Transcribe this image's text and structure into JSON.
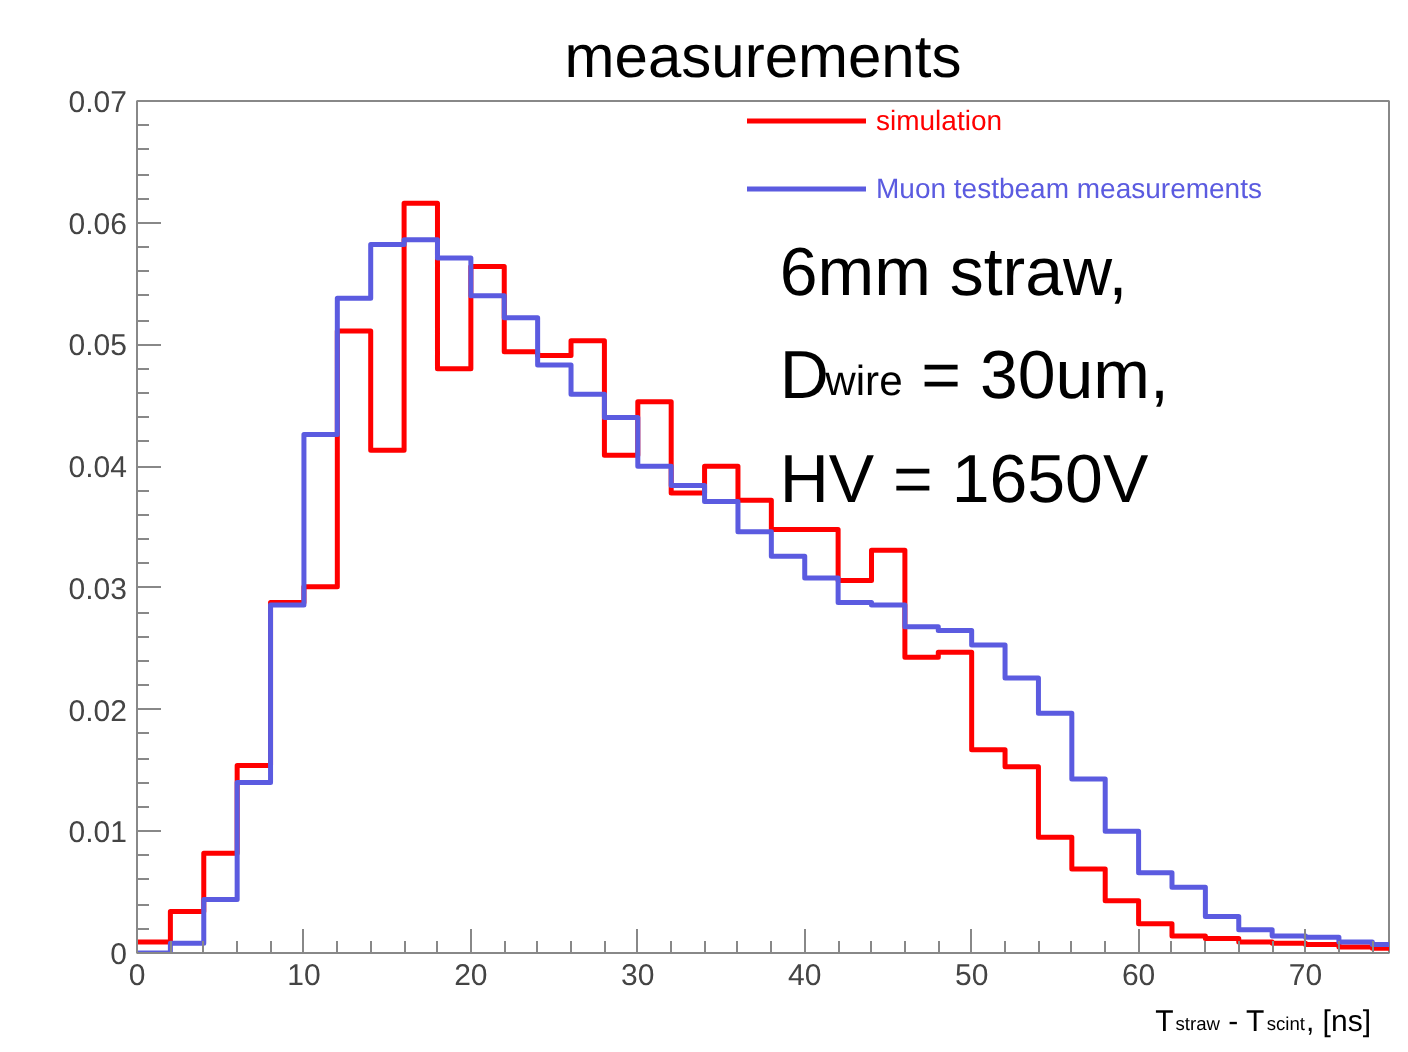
{
  "chart_data": {
    "type": "histogram",
    "title": "measurements",
    "xlabel": "T$_{straw}$ - T$_{scint}$, [ns]",
    "bins": [
      0,
      2,
      4,
      6,
      8,
      10,
      12,
      14,
      16,
      18,
      20,
      22,
      24,
      26,
      28,
      30,
      32,
      34,
      36,
      38,
      40,
      42,
      44,
      46,
      48,
      50,
      52,
      54,
      56,
      58,
      60,
      62,
      64,
      66,
      68,
      70,
      72,
      74,
      75
    ],
    "series": [
      {
        "name": "simulation",
        "color": "#ff0000",
        "values": [
          0.0009,
          0.0034,
          0.0082,
          0.0154,
          0.0288,
          0.0301,
          0.0511,
          0.0413,
          0.0616,
          0.048,
          0.0564,
          0.0494,
          0.0491,
          0.0503,
          0.0409,
          0.0453,
          0.0378,
          0.04,
          0.0372,
          0.0348,
          0.0348,
          0.0306,
          0.0331,
          0.0243,
          0.0247,
          0.0167,
          0.0153,
          0.0095,
          0.0069,
          0.0043,
          0.0024,
          0.0014,
          0.0012,
          0.0009,
          0.0008,
          0.0007,
          0.0005,
          0.0004
        ]
      },
      {
        "name": "Muon testbeam measurements",
        "color": "#5b5be0",
        "values": [
          0.0,
          0.0008,
          0.0044,
          0.014,
          0.0286,
          0.0426,
          0.0538,
          0.0582,
          0.0586,
          0.0571,
          0.054,
          0.0522,
          0.0483,
          0.0459,
          0.044,
          0.04,
          0.0384,
          0.0371,
          0.0346,
          0.0326,
          0.0308,
          0.0288,
          0.0286,
          0.0268,
          0.0265,
          0.0253,
          0.0226,
          0.0197,
          0.0143,
          0.01,
          0.0066,
          0.0054,
          0.003,
          0.0019,
          0.0014,
          0.0013,
          0.0009,
          0.0007
        ]
      }
    ],
    "xlim": [
      0,
      75
    ],
    "ylim": [
      0,
      0.07
    ],
    "xticks": [
      0,
      10,
      20,
      30,
      40,
      50,
      60,
      70
    ],
    "yticks": [
      0,
      0.01,
      0.02,
      0.03,
      0.04,
      0.05,
      0.06,
      0.07
    ],
    "annotations": [
      "6mm straw,",
      "D$_{wire}$ = 30um,",
      "HV = 1650V"
    ],
    "legend": "top right",
    "grid": false
  }
}
